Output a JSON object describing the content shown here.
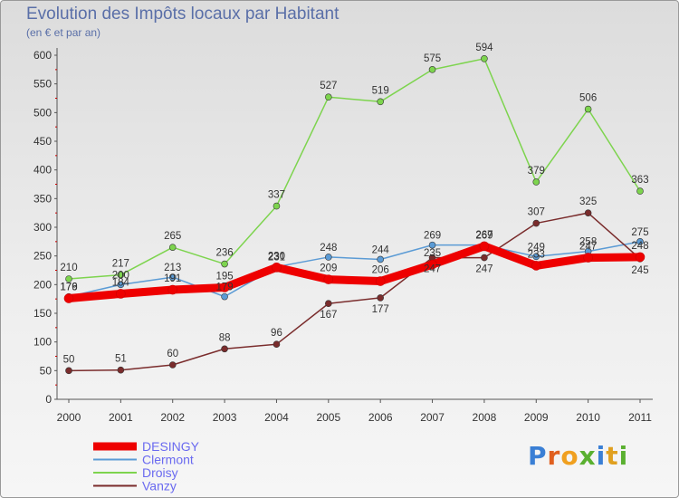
{
  "chart_data": {
    "type": "line",
    "title": "Evolution des Impôts locaux par Habitant",
    "subtitle": "(en € et par an)",
    "x": [
      "2000",
      "2001",
      "2002",
      "2003",
      "2004",
      "2005",
      "2006",
      "2007",
      "2008",
      "2009",
      "2010",
      "2011"
    ],
    "ylim": [
      0,
      600
    ],
    "yticks": [
      0,
      50,
      100,
      150,
      200,
      250,
      300,
      350,
      400,
      450,
      500,
      550,
      600
    ],
    "grid": false,
    "legend_position": "bottom-left",
    "series": [
      {
        "name": "DESINGY",
        "color": "#ee0000",
        "values": [
          176,
          184,
          191,
          195,
          230,
          209,
          206,
          235,
          267,
          233,
          247,
          248
        ]
      },
      {
        "name": "Clermont",
        "color": "#5b9bd5",
        "values": [
          179,
          200,
          213,
          179,
          231,
          248,
          244,
          269,
          269,
          249,
          258,
          275
        ]
      },
      {
        "name": "Droisy",
        "color": "#7dd44e",
        "values": [
          210,
          217,
          265,
          236,
          337,
          527,
          519,
          575,
          594,
          379,
          506,
          363
        ]
      },
      {
        "name": "Vanzy",
        "color": "#7a2c2c",
        "values": [
          50,
          51,
          60,
          88,
          96,
          167,
          177,
          247,
          247,
          307,
          325,
          245
        ]
      }
    ]
  },
  "branding": {
    "logo_letters": [
      "P",
      "r",
      "o",
      "x",
      "i",
      "t",
      "i"
    ],
    "logo_colors": [
      "#3a7fd5",
      "#e06020",
      "#f0a020",
      "#5ab030",
      "#3a7fd5",
      "#e0a020",
      "#5ab030"
    ]
  }
}
